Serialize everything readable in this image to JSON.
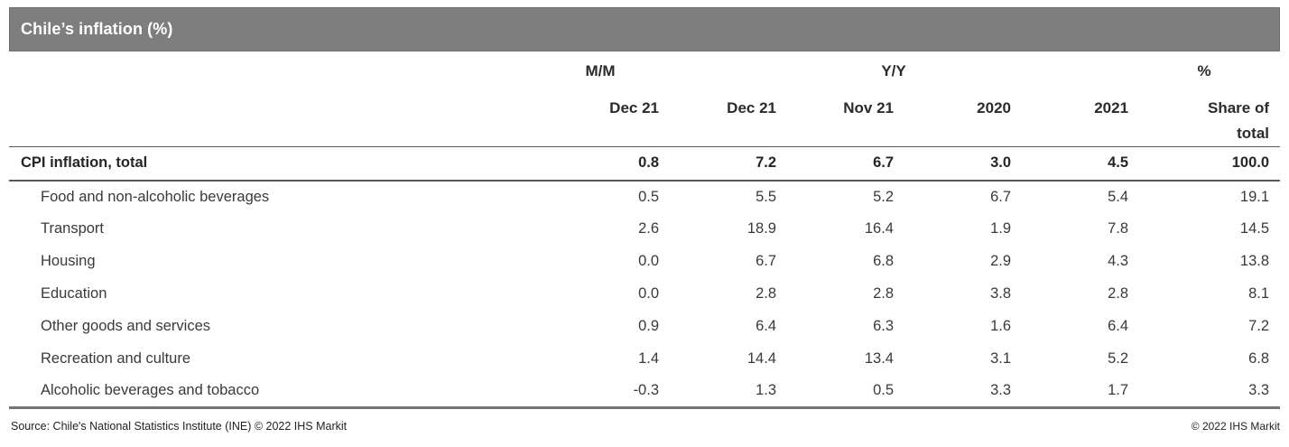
{
  "title": "Chile’s inflation (%)",
  "chart_data": {
    "type": "table",
    "title": "Chile’s inflation (%)",
    "units": "percent",
    "group_headers": [
      {
        "label": "M/M",
        "span": 1
      },
      {
        "label": "Y/Y",
        "span": 4
      },
      {
        "label": "%",
        "span": 1
      }
    ],
    "columns": [
      "Dec 21",
      "Dec 21",
      "Nov 21",
      "2020",
      "2021",
      "Share of total"
    ],
    "rows": [
      {
        "label": "CPI inflation, total",
        "bold": true,
        "values": [
          "0.8",
          "7.2",
          "6.7",
          "3.0",
          "4.5",
          "100.0"
        ]
      },
      {
        "label": "Food and non-alcoholic beverages",
        "values": [
          "0.5",
          "5.5",
          "5.2",
          "6.7",
          "5.4",
          "19.1"
        ]
      },
      {
        "label": "Transport",
        "values": [
          "2.6",
          "18.9",
          "16.4",
          "1.9",
          "7.8",
          "14.5"
        ]
      },
      {
        "label": "Housing",
        "values": [
          "0.0",
          "6.7",
          "6.8",
          "2.9",
          "4.3",
          "13.8"
        ]
      },
      {
        "label": "Education",
        "values": [
          "0.0",
          "2.8",
          "2.8",
          "3.8",
          "2.8",
          "8.1"
        ]
      },
      {
        "label": "Other goods and services",
        "values": [
          "0.9",
          "6.4",
          "6.3",
          "1.6",
          "6.4",
          "7.2"
        ]
      },
      {
        "label": "Recreation and culture",
        "values": [
          "1.4",
          "14.4",
          "13.4",
          "3.1",
          "5.2",
          "6.8"
        ]
      },
      {
        "label": "Alcoholic beverages and tobacco",
        "values": [
          "-0.3",
          "1.3",
          "0.5",
          "3.3",
          "1.7",
          "3.3"
        ]
      }
    ]
  },
  "footer": {
    "source": "Source: Chile's National Statistics Institute (INE) © 2022 IHS Markit",
    "copyright": "© 2022 IHS Markit"
  },
  "colors": {
    "title_bar_bg": "#7e7e7e",
    "title_text": "#ffffff",
    "rule_thin": "#595959",
    "rule_bottom": "#757575",
    "body_text": "#3a3a3a"
  }
}
